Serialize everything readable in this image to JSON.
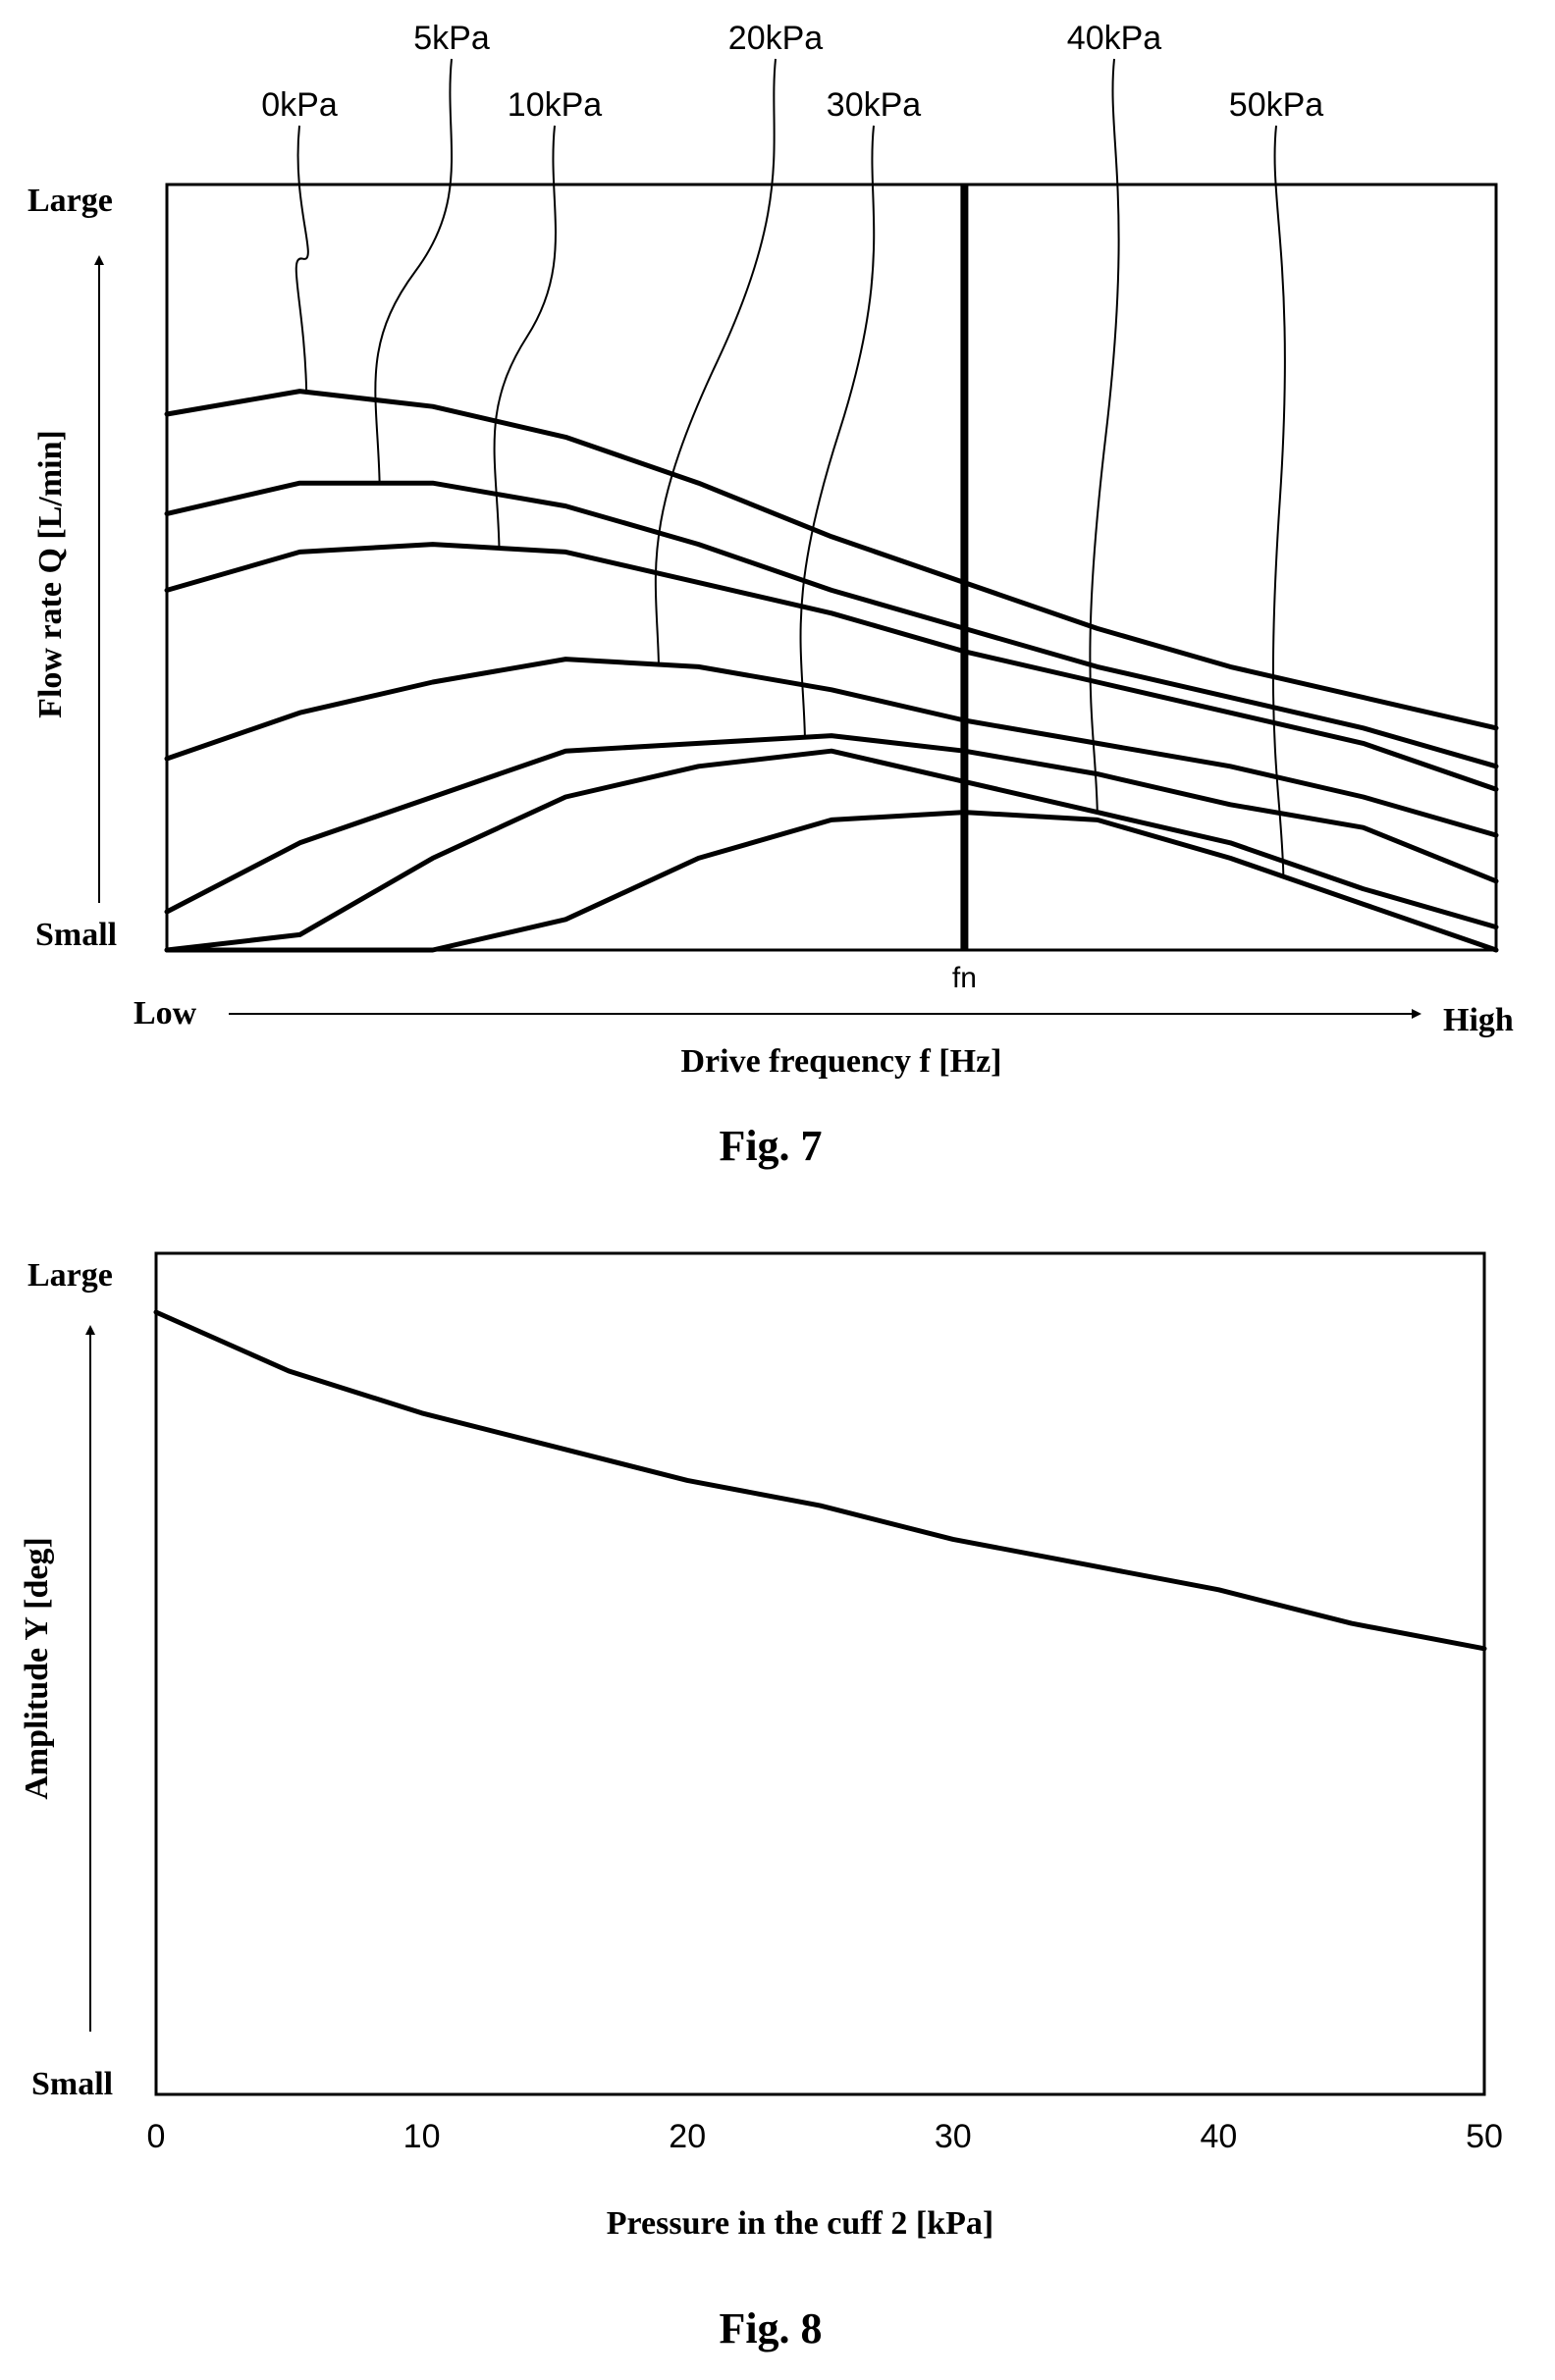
{
  "figures": {
    "fig7": {
      "caption": "Fig. 7",
      "y_axis": {
        "label": "Flow rate Q [L/min]",
        "top_label": "Large",
        "bottom_label": "Small"
      },
      "x_axis": {
        "label": "Drive frequency f [Hz]",
        "left_label": "Low",
        "right_label": "High"
      },
      "marker_label": "fn"
    },
    "fig8": {
      "caption": "Fig. 8",
      "y_axis": {
        "label": "Amplitude Y [deg]",
        "top_label": "Large",
        "bottom_label": "Small"
      },
      "x_axis": {
        "label": "Pressure in the cuff 2 [kPa]"
      }
    }
  },
  "chart_data": [
    {
      "type": "line",
      "x": [
        0,
        1,
        2,
        3,
        4,
        5,
        6,
        7,
        8,
        9,
        10
      ],
      "xlim": [
        0,
        10
      ],
      "ylim": [
        0,
        100
      ],
      "ticks_shown": false,
      "marker_x": 6,
      "marker_label": "fn",
      "series": [
        {
          "name": "0kPa",
          "values": [
            70,
            73,
            71,
            67,
            61,
            54,
            48,
            42,
            37,
            33,
            29
          ]
        },
        {
          "name": "5kPa",
          "values": [
            57,
            61,
            61,
            58,
            53,
            47,
            42,
            37,
            33,
            29,
            24
          ]
        },
        {
          "name": "10kPa",
          "values": [
            47,
            52,
            53,
            52,
            48,
            44,
            39,
            35,
            31,
            27,
            21
          ]
        },
        {
          "name": "20kPa",
          "values": [
            25,
            31,
            35,
            38,
            37,
            34,
            30,
            27,
            24,
            20,
            15
          ]
        },
        {
          "name": "30kPa",
          "values": [
            5,
            14,
            20,
            26,
            27,
            28,
            26,
            23,
            19,
            16,
            9
          ]
        },
        {
          "name": "40kPa",
          "values": [
            0,
            2,
            12,
            20,
            24,
            26,
            22,
            18,
            14,
            8,
            3
          ]
        },
        {
          "name": "50kPa",
          "values": [
            0,
            0,
            0,
            4,
            12,
            17,
            18,
            17,
            12,
            6,
            0
          ]
        }
      ],
      "title": "",
      "xlabel": "Drive frequency f [Hz]",
      "ylabel": "Flow rate Q [L/min]",
      "grid": false,
      "legend": "curve labels above plot"
    },
    {
      "type": "line",
      "x": [
        0,
        5,
        10,
        15,
        20,
        25,
        30,
        35,
        40,
        45,
        50
      ],
      "xlim": [
        0,
        50
      ],
      "ylim": [
        0,
        100
      ],
      "x_ticks": [
        "0",
        "10",
        "20",
        "30",
        "40",
        "50"
      ],
      "series": [
        {
          "values": [
            93,
            86,
            81,
            77,
            73,
            70,
            66,
            63,
            60,
            56,
            53
          ]
        }
      ],
      "title": "",
      "xlabel": "Pressure in the cuff 2 [kPa]",
      "ylabel": "Amplitude Y [deg]",
      "grid": false
    }
  ]
}
